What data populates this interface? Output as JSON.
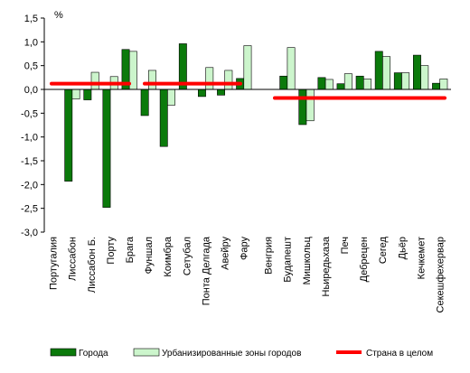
{
  "chart_data": {
    "type": "bar",
    "title": "",
    "xlabel": "",
    "ylabel": "%",
    "ylim": [
      -3.0,
      1.5
    ],
    "yticks": [
      "1,5",
      "1,0",
      "0,5",
      "0,0",
      "-0,5",
      "-1,0",
      "-1,5",
      "-2,0",
      "-2,5",
      "-3,0"
    ],
    "yticks_values": [
      1.5,
      1.0,
      0.5,
      0.0,
      -0.5,
      -1.0,
      -1.5,
      -2.0,
      -2.5,
      -3.0
    ],
    "grid": false,
    "legend_position": "bottom",
    "groups": [
      {
        "categories": [
          "Португалия",
          "Лиссабон",
          "Лиссабон Б.",
          "Порту",
          "Брага",
          "Фуншал",
          "Коимбра",
          "Сетубал",
          "Понта Делгада",
          "Авейру",
          "Фару"
        ],
        "country_value": 0.12
      },
      {
        "categories": [
          "Венгрия",
          "Будапешт",
          "Мишкольц",
          "Ньиредьхаза",
          "Печ",
          "Дебрецен",
          "Сегед",
          "Дьёр",
          "Кечкемет",
          "Секешфехервар"
        ],
        "country_value": -0.18
      }
    ],
    "series": [
      {
        "name": "Города",
        "color": "#0b7a0b",
        "values": [
          null,
          -1.93,
          -0.22,
          -2.48,
          0.84,
          -0.55,
          -1.2,
          0.96,
          -0.15,
          -0.12,
          0.23,
          null,
          0.28,
          -0.74,
          0.25,
          0.12,
          0.28,
          0.8,
          0.35,
          0.72,
          0.13
        ]
      },
      {
        "name": "Урбанизированные зоны городов",
        "color": "#ccf5cc",
        "values": [
          null,
          -0.2,
          0.36,
          0.27,
          0.8,
          0.4,
          -0.33,
          null,
          0.46,
          0.4,
          0.92,
          null,
          0.88,
          -0.66,
          0.21,
          0.33,
          0.22,
          0.69,
          0.35,
          0.5,
          0.22
        ]
      },
      {
        "name": "Страна в целом",
        "color": "#ff0000",
        "type": "line"
      }
    ]
  },
  "colors": {
    "city_fill": "#0b7a0b",
    "urban_fill": "#ccf5cc",
    "country_line": "#ff0000",
    "axis": "#000000"
  }
}
